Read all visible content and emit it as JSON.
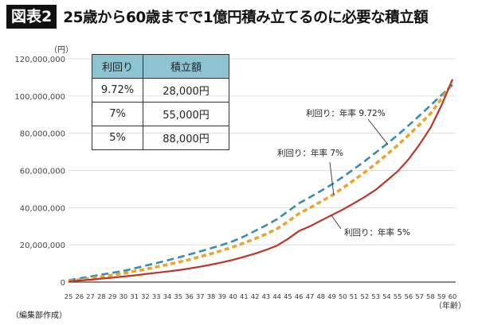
{
  "header": {
    "badge": "図表2",
    "title": "25歳から60歳までで1億円積み立てるのに必要な積立額"
  },
  "table": {
    "headers": [
      "利回り",
      "積立額"
    ],
    "rows": [
      [
        "9.72%",
        "28,000円"
      ],
      [
        "7%",
        "55,000円"
      ],
      [
        "5%",
        "88,000円"
      ]
    ]
  },
  "source": "（編集部作成）",
  "chart_data": {
    "type": "line",
    "ylabel": "（円）",
    "xlabel": "（年齢）",
    "ylim": [
      0,
      120000000
    ],
    "yticks": [
      0,
      20000000,
      40000000,
      60000000,
      80000000,
      100000000,
      120000000
    ],
    "ytick_labels": [
      "0",
      "20,000,000",
      "40,000,000",
      "60,000,000",
      "80,000,000",
      "100,000,000",
      "120,000,000"
    ],
    "grid": "horizontal",
    "x": [
      25,
      26,
      27,
      28,
      29,
      30,
      31,
      32,
      33,
      34,
      35,
      36,
      37,
      38,
      39,
      40,
      41,
      42,
      43,
      44,
      45,
      46,
      47,
      48,
      49,
      50,
      51,
      52,
      53,
      54,
      55,
      56,
      57,
      58,
      59,
      60
    ],
    "series": [
      {
        "name": "利回り：年率 9.72%",
        "color": "#3a8ab2",
        "style": "dashed",
        "values": [
          1000000,
          2000000,
          3000000,
          4000000,
          5000000,
          6000000,
          7400000,
          8800000,
          10200000,
          11700000,
          13200000,
          14800000,
          16500000,
          18200000,
          20000000,
          22000000,
          24500000,
          27500000,
          30500000,
          33800000,
          38000000,
          42300000,
          45600000,
          49000000,
          52500000,
          56500000,
          60700000,
          65000000,
          69600000,
          74200000,
          79000000,
          84200000,
          89500000,
          95000000,
          100500000,
          106000000
        ]
      },
      {
        "name": "利回り：年率 7%",
        "color": "#e8a531",
        "style": "dotted",
        "values": [
          600000,
          1300000,
          2100000,
          2900000,
          3800000,
          4700000,
          5800000,
          6900000,
          8100000,
          9400000,
          10700000,
          12100000,
          13700000,
          15300000,
          17000000,
          18900000,
          21000000,
          23300000,
          25800000,
          28600000,
          32500000,
          36800000,
          39900000,
          43200000,
          46600000,
          50500000,
          54700000,
          59000000,
          63600000,
          68500000,
          73500000,
          79000000,
          84700000,
          90600000,
          98500000,
          107000000
        ]
      },
      {
        "name": "利回り：年率 5%",
        "color": "#b8362b",
        "style": "solid",
        "values": [
          300000,
          800000,
          1300000,
          1900000,
          2400000,
          3000000,
          3600000,
          4300000,
          5000000,
          5700000,
          6400000,
          7300000,
          8300000,
          9400000,
          10600000,
          12000000,
          13600000,
          15300000,
          17300000,
          19600000,
          23200000,
          27400000,
          30000000,
          33000000,
          36000000,
          39000000,
          42300000,
          45800000,
          49600000,
          54500000,
          59500000,
          66000000,
          74000000,
          83000000,
          95000000,
          109000000
        ]
      }
    ]
  }
}
